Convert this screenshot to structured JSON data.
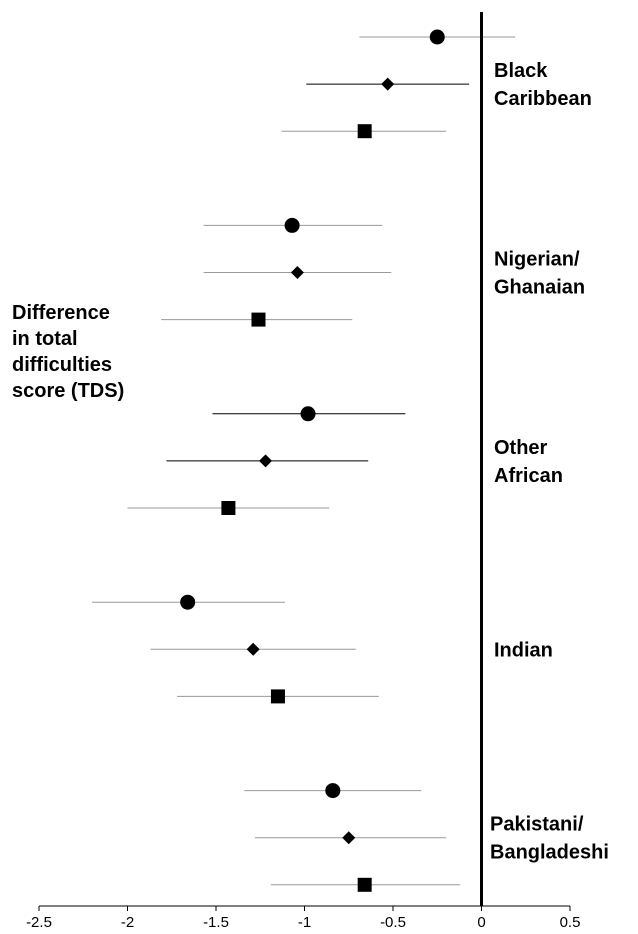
{
  "chart_data": {
    "type": "scatter",
    "subtype": "forest-plot",
    "ylabel_lines": [
      "Difference",
      "in total",
      "difficulties",
      "score (TDS)"
    ],
    "xlim": [
      -2.5,
      0.5
    ],
    "x_ticks": [
      "-2.5",
      "-2",
      "-1.5",
      "-1",
      "-0.5",
      "0",
      "0.5"
    ],
    "x_tick_values": [
      -2.5,
      -2,
      -1.5,
      -1,
      -0.5,
      0,
      0.5
    ],
    "reference_line": 0,
    "marker_shapes": [
      "circle",
      "diamond",
      "square"
    ],
    "colors": {
      "marker": "#000000",
      "ci_line": "#9a9a9a",
      "ci_line_dark": "#000000",
      "axis": "#000000"
    },
    "groups": [
      {
        "label_lines": [
          "Black",
          "Caribbean"
        ],
        "estimates": [
          {
            "marker": "circle",
            "value": -0.25,
            "lower": -0.69,
            "upper": 0.19
          },
          {
            "marker": "diamond",
            "value": -0.53,
            "lower": -0.99,
            "upper": -0.07
          },
          {
            "marker": "square",
            "value": -0.66,
            "lower": -1.13,
            "upper": -0.2
          }
        ]
      },
      {
        "label_lines": [
          "Nigerian/",
          "Ghanaian"
        ],
        "estimates": [
          {
            "marker": "circle",
            "value": -1.07,
            "lower": -1.57,
            "upper": -0.56
          },
          {
            "marker": "diamond",
            "value": -1.04,
            "lower": -1.57,
            "upper": -0.51
          },
          {
            "marker": "square",
            "value": -1.26,
            "lower": -1.81,
            "upper": -0.73
          }
        ]
      },
      {
        "label_lines": [
          "Other",
          "African"
        ],
        "estimates": [
          {
            "marker": "circle",
            "value": -0.98,
            "lower": -1.52,
            "upper": -0.43
          },
          {
            "marker": "diamond",
            "value": -1.22,
            "lower": -1.78,
            "upper": -0.64
          },
          {
            "marker": "square",
            "value": -1.43,
            "lower": -2.0,
            "upper": -0.86
          }
        ]
      },
      {
        "label_lines": [
          "Indian"
        ],
        "estimates": [
          {
            "marker": "circle",
            "value": -1.66,
            "lower": -2.2,
            "upper": -1.11
          },
          {
            "marker": "diamond",
            "value": -1.29,
            "lower": -1.87,
            "upper": -0.71
          },
          {
            "marker": "square",
            "value": -1.15,
            "lower": -1.72,
            "upper": -0.58
          }
        ]
      },
      {
        "label_lines": [
          "Pakistani/",
          "Bangladeshi"
        ],
        "estimates": [
          {
            "marker": "circle",
            "value": -0.84,
            "lower": -1.34,
            "upper": -0.34
          },
          {
            "marker": "diamond",
            "value": -0.75,
            "lower": -1.28,
            "upper": -0.2
          },
          {
            "marker": "square",
            "value": -0.66,
            "lower": -1.19,
            "upper": -0.12
          }
        ]
      }
    ]
  }
}
